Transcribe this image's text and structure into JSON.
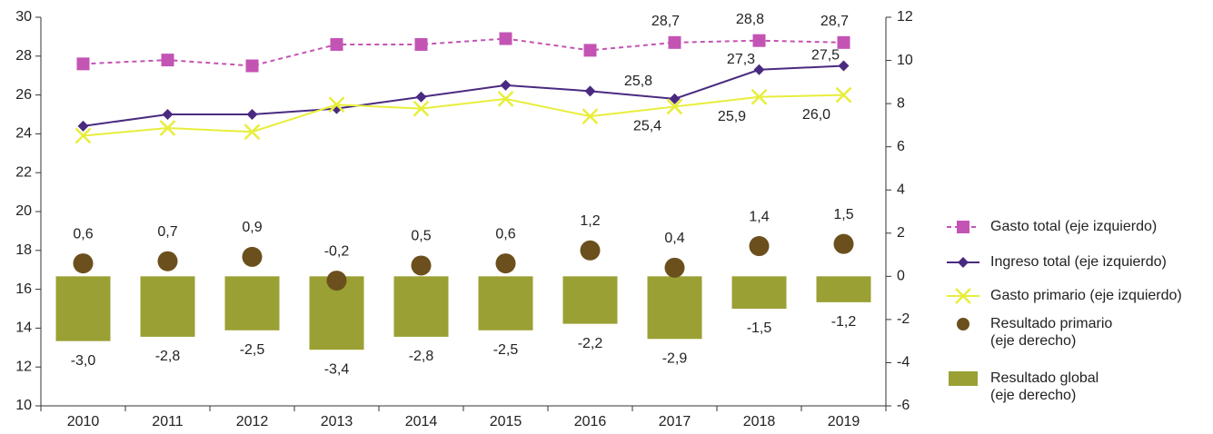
{
  "chart_data": {
    "type": "line",
    "categories": [
      "2010",
      "2011",
      "2012",
      "2013",
      "2014",
      "2015",
      "2016",
      "2017",
      "2018",
      "2019"
    ],
    "ylim": [
      10,
      30
    ],
    "yticks": [
      10,
      12,
      14,
      16,
      18,
      20,
      22,
      24,
      26,
      28,
      30
    ],
    "y2lim": [
      -6,
      12
    ],
    "y2ticks": [
      -6,
      -4,
      -2,
      0,
      2,
      4,
      6,
      8,
      10,
      12
    ],
    "series": [
      {
        "name": "Gasto total (eje izquierdo)",
        "type": "line",
        "marker": "square",
        "dashed": true,
        "color": "#c354b4",
        "values": [
          27.6,
          27.8,
          27.5,
          28.6,
          28.6,
          28.9,
          28.3,
          28.7,
          28.8,
          28.7
        ],
        "value_labels": [
          null,
          null,
          null,
          null,
          null,
          null,
          null,
          "28,7",
          "28,8",
          "28,7"
        ]
      },
      {
        "name": "Ingreso total (eje izquierdo)",
        "type": "line",
        "marker": "diamond",
        "color": "#4a2a80",
        "values": [
          24.4,
          25.0,
          25.0,
          25.3,
          25.9,
          26.5,
          26.2,
          25.8,
          27.3,
          27.5
        ],
        "value_labels": [
          null,
          null,
          null,
          null,
          null,
          null,
          null,
          "25,8",
          "27,3",
          "27,5"
        ]
      },
      {
        "name": "Gasto primario (eje izquierdo)",
        "type": "line",
        "marker": "x",
        "color": "#e8ee3a",
        "values": [
          23.9,
          24.3,
          24.1,
          25.5,
          25.3,
          25.8,
          24.9,
          25.4,
          25.9,
          26.0
        ],
        "value_labels": [
          null,
          null,
          null,
          null,
          null,
          null,
          null,
          "25,4",
          "25,9",
          "26,0"
        ]
      },
      {
        "name": "Resultado primario\n(eje derecho)",
        "type": "scatter",
        "marker": "circle",
        "axis": "y2",
        "color": "#6b4f1d",
        "values": [
          0.6,
          0.7,
          0.9,
          -0.2,
          0.5,
          0.6,
          1.2,
          0.4,
          1.4,
          1.5
        ],
        "value_labels": [
          "0,6",
          "0,7",
          "0,9",
          "-0,2",
          "0,5",
          "0,6",
          "1,2",
          "0,4",
          "1,4",
          "1,5"
        ]
      },
      {
        "name": "Resultado global\n(eje derecho)",
        "type": "bar",
        "axis": "y2",
        "color": "#9aa033",
        "values": [
          -3.0,
          -2.8,
          -2.5,
          -3.4,
          -2.8,
          -2.5,
          -2.2,
          -2.9,
          -1.5,
          -1.2
        ],
        "value_labels": [
          "-3,0",
          "-2,8",
          "-2,5",
          "-3,4",
          "-2,8",
          "-2,5",
          "-2,2",
          "-2,9",
          "-1,5",
          "-1,2"
        ]
      }
    ]
  }
}
